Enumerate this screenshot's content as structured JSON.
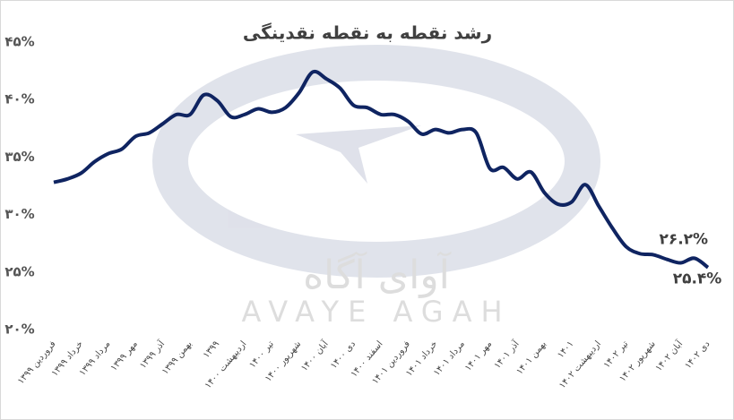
{
  "chart_data": {
    "type": "line",
    "title": "رشد نقطه به نقطه نقدینگی",
    "watermark": [
      "آوای آگاه",
      "AVAYE AGAH"
    ],
    "categories": [
      "فروردین ۱۳۹۹",
      null,
      "خرداد ۱۳۹۹",
      null,
      "مرداد ۱۳۹۹",
      null,
      "مهر ۱۳۹۹",
      null,
      "آذر ۱۳۹۹",
      null,
      "بهمن ۱۳۹۹",
      null,
      "۱۳۹۹",
      null,
      "اردیبهشت ۱۴۰۰",
      null,
      "تیر ۱۴۰۰",
      null,
      "شهریور ۱۴۰۰",
      null,
      "آبان ۱۴۰۰",
      null,
      "دی ۱۴۰۰",
      null,
      "اسفند ۱۴۰۰",
      null,
      "فروردین ۱۴۰۱",
      null,
      "خرداد ۱۴۰۱",
      null,
      "مرداد ۱۴۰۱",
      null,
      "مهر ۱۴۰۱",
      null,
      "آذر ۱۴۰۱",
      null,
      "بهمن ۱۴۰۱",
      null,
      "۱۴۰۱",
      null,
      "اردیبهشت ۱۴۰۲",
      null,
      "تیر ۱۴۰۲",
      null,
      "شهریور ۱۴۰۲",
      null,
      "آبان ۱۴۰۲",
      null,
      "دی ۱۴۰۲"
    ],
    "series": [
      {
        "name": "رشد نقطه به نقطه نقدینگی",
        "color": "#0f2461",
        "values": [
          32.8,
          33.1,
          33.6,
          34.6,
          35.3,
          35.7,
          36.8,
          37.1,
          37.9,
          38.7,
          38.7,
          40.4,
          39.9,
          38.5,
          38.7,
          39.2,
          38.9,
          39.3,
          40.6,
          42.4,
          41.8,
          41.0,
          39.5,
          39.3,
          38.7,
          38.7,
          38.1,
          37.0,
          37.4,
          37.1,
          37.4,
          37.1,
          34.0,
          34.1,
          33.1,
          33.7,
          31.9,
          30.9,
          31.1,
          32.6,
          30.7,
          28.8,
          27.2,
          26.6,
          26.5,
          26.1,
          25.8,
          26.2,
          25.4
        ],
        "value_labels": [
          null,
          null,
          null,
          null,
          null,
          null,
          null,
          null,
          null,
          null,
          null,
          null,
          null,
          null,
          null,
          null,
          null,
          null,
          null,
          null,
          null,
          null,
          null,
          null,
          null,
          null,
          null,
          null,
          null,
          null,
          null,
          null,
          null,
          null,
          null,
          null,
          null,
          null,
          null,
          null,
          null,
          null,
          null,
          null,
          null,
          null,
          null,
          "۲۶.۲%",
          "۲۵.۴%"
        ]
      }
    ],
    "ylim": [
      20,
      45
    ],
    "yticks": [
      {
        "value": 20,
        "label": "۲۰%"
      },
      {
        "value": 25,
        "label": "۲۵%"
      },
      {
        "value": 30,
        "label": "۳۰%"
      },
      {
        "value": 35,
        "label": "۳۵%"
      },
      {
        "value": 40,
        "label": "۴۰%"
      },
      {
        "value": 45,
        "label": "۴۵%"
      }
    ],
    "grid": false
  }
}
